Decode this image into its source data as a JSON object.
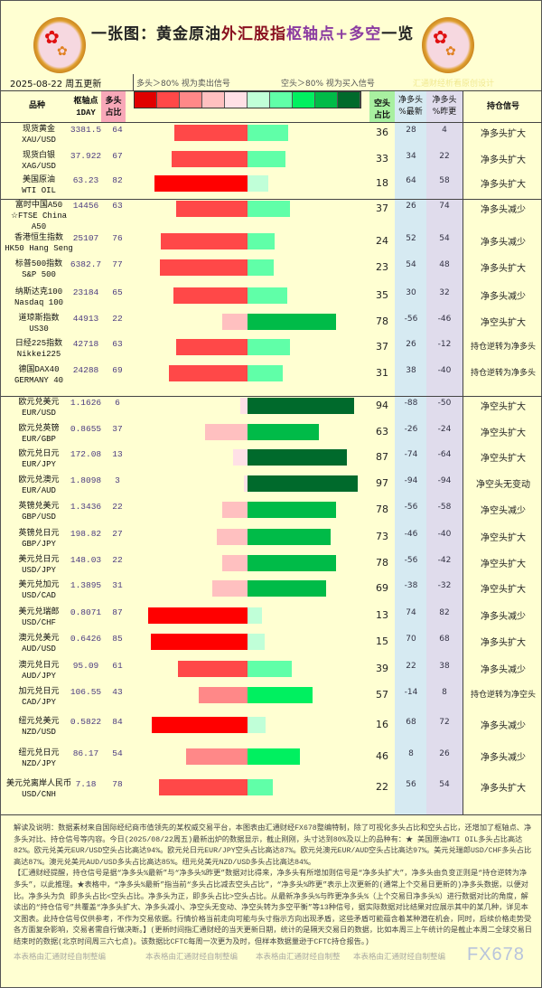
{
  "header": {
    "title_parts": [
      "一张图：黄金原油",
      "外汇股指",
      "枢轴点+多空",
      "一览"
    ],
    "date": "2025-08-22 周五更新",
    "long_signal_note": "多头＞80% 视为卖出信号",
    "short_signal_note": "空头＞80% 视为买入信号",
    "credit": "汇通财经析看原创设计",
    "logo_icon": "plum-blossom-logo"
  },
  "legend_colors": [
    "#e00000",
    "#ff4848",
    "#ff8888",
    "#ffc0c0",
    "#ffe0e6",
    "#c0ffd8",
    "#60ffa8",
    "#00f060",
    "#00bb48",
    "#006a2c"
  ],
  "columns": {
    "name": "品种",
    "pivot": "枢轴点",
    "pivot_sub": "1DAY",
    "long": "多头",
    "long_sub": "占比",
    "short": "空头",
    "short_sub": "占比",
    "net_latest": "净多头",
    "net_latest_sub": "%最新",
    "net_prev": "净多头",
    "net_prev_sub": "%昨更",
    "signal": "持仓信号"
  },
  "rows": [
    {
      "name": "现货黄金",
      "code": "XAU/USD",
      "pivot": "3381.5",
      "long": 64,
      "short": 36,
      "net_latest": "28",
      "net_prev": "4",
      "signal": "净多头扩大"
    },
    {
      "name": "现货白银",
      "code": "XAG/USD",
      "pivot": "37.922",
      "long": 67,
      "short": 33,
      "net_latest": "34",
      "net_prev": "22",
      "signal": "净多头扩大"
    },
    {
      "name": "美国原油",
      "code": "WTI OIL",
      "pivot": "63.23",
      "long": 82,
      "short": 18,
      "net_latest": "64",
      "net_prev": "58",
      "signal": "净多头扩大"
    },
    {
      "name": "富时中国A50",
      "code": "☆FTSE China A50",
      "pivot": "14456",
      "long": 63,
      "short": 37,
      "net_latest": "26",
      "net_prev": "74",
      "signal": "净多头减少"
    },
    {
      "name": "香港恒生指数",
      "code": "HK50 Hang Seng",
      "pivot": "25107",
      "long": 76,
      "short": 24,
      "net_latest": "52",
      "net_prev": "54",
      "signal": "净多头减少"
    },
    {
      "name": "标普500指数",
      "code": "S&P 500",
      "pivot": "6382.7",
      "long": 77,
      "short": 23,
      "net_latest": "54",
      "net_prev": "48",
      "signal": "净多头扩大"
    },
    {
      "name": "纳斯达克100",
      "code": "Nasdaq 100",
      "pivot": "23184",
      "long": 65,
      "short": 35,
      "net_latest": "30",
      "net_prev": "32",
      "signal": "净多头减少"
    },
    {
      "name": "道琼斯指数",
      "code": "US30",
      "pivot": "44913",
      "long": 22,
      "short": 78,
      "net_latest": "-56",
      "net_prev": "-46",
      "signal": "净空头扩大"
    },
    {
      "name": "日经225指数",
      "code": "Nikkei225",
      "pivot": "42718",
      "long": 63,
      "short": 37,
      "net_latest": "26",
      "net_prev": "-12",
      "signal": "持仓逆转为净多头"
    },
    {
      "name": "德国DAX40",
      "code": "GERMANY 40",
      "pivot": "24288",
      "long": 69,
      "short": 31,
      "net_latest": "38",
      "net_prev": "-40",
      "signal": "持仓逆转为净多头"
    },
    {
      "name": "欧元兑美元",
      "code": "EUR/USD",
      "pivot": "1.1626",
      "long": 6,
      "short": 94,
      "net_latest": "-88",
      "net_prev": "-50",
      "signal": "净空头扩大"
    },
    {
      "name": "欧元兑英镑",
      "code": "EUR/GBP",
      "pivot": "0.8655",
      "long": 37,
      "short": 63,
      "net_latest": "-26",
      "net_prev": "-24",
      "signal": "净空头扩大"
    },
    {
      "name": "欧元兑日元",
      "code": "EUR/JPY",
      "pivot": "172.08",
      "long": 13,
      "short": 87,
      "net_latest": "-74",
      "net_prev": "-64",
      "signal": "净空头扩大"
    },
    {
      "name": "欧元兑澳元",
      "code": "EUR/AUD",
      "pivot": "1.8098",
      "long": 3,
      "short": 97,
      "net_latest": "-94",
      "net_prev": "-94",
      "signal": "净空头无变动"
    },
    {
      "name": "英镑兑美元",
      "code": "GBP/USD",
      "pivot": "1.3436",
      "long": 22,
      "short": 78,
      "net_latest": "-56",
      "net_prev": "-58",
      "signal": "净空头减少"
    },
    {
      "name": "英镑兑日元",
      "code": "GBP/JPY",
      "pivot": "198.82",
      "long": 27,
      "short": 73,
      "net_latest": "-46",
      "net_prev": "-40",
      "signal": "净空头扩大"
    },
    {
      "name": "美元兑日元",
      "code": "USD/JPY",
      "pivot": "148.03",
      "long": 22,
      "short": 78,
      "net_latest": "-56",
      "net_prev": "-42",
      "signal": "净空头扩大"
    },
    {
      "name": "美元兑加元",
      "code": "USD/CAD",
      "pivot": "1.3895",
      "long": 31,
      "short": 69,
      "net_latest": "-38",
      "net_prev": "-32",
      "signal": "净空头扩大"
    },
    {
      "name": "美元兑瑞郎",
      "code": "USD/CHF",
      "pivot": "0.8071",
      "long": 87,
      "short": 13,
      "net_latest": "74",
      "net_prev": "82",
      "signal": "净多头减少"
    },
    {
      "name": "澳元兑美元",
      "code": "AUD/USD",
      "pivot": "0.6426",
      "long": 85,
      "short": 15,
      "net_latest": "70",
      "net_prev": "68",
      "signal": "净多头扩大"
    },
    {
      "name": "澳元兑日元",
      "code": "AUD/JPY",
      "pivot": "95.09",
      "long": 61,
      "short": 39,
      "net_latest": "22",
      "net_prev": "38",
      "signal": "净多头减少"
    },
    {
      "name": "加元兑日元",
      "code": "CAD/JPY",
      "pivot": "106.55",
      "long": 43,
      "short": 57,
      "net_latest": "-14",
      "net_prev": "8",
      "signal": "持仓逆转为净空头"
    },
    {
      "name": "纽元兑美元",
      "code": "NZD/USD",
      "pivot": "0.5822",
      "long": 84,
      "short": 16,
      "net_latest": "68",
      "net_prev": "72",
      "signal": "净多头减少"
    },
    {
      "name": "纽元兑日元",
      "code": "NZD/JPY",
      "pivot": "86.17",
      "long": 54,
      "short": 46,
      "net_latest": "8",
      "net_prev": "26",
      "signal": "净多头减少"
    },
    {
      "name": "美元兑离岸人民币",
      "code": "USD/CNH",
      "pivot": "7.18",
      "long": 78,
      "short": 22,
      "net_latest": "56",
      "net_prev": "54",
      "signal": "净多头扩大"
    }
  ],
  "notes": [
    "解读及说明：数据素材来自国际经纪商市值领先的某权威交易平台，本图表由汇通财经FX678整编特制，除了可视化多头占比和空头占比，还增加了枢轴点、净多头对比、持仓信号等内容。今日(2025/08/22周五)最新出炉的数据显示，截止刚刚，头寸达到80%及以上的品种有：★ 美国原油WTI OIL多头占比高达82%。欧元兑美元EUR/USD空头占比高达94%。欧元兑日元EUR/JPY空头占比高达87%。欧元兑澳元EUR/AUD空头占比高达97%。美元兑瑞郎USD/CHF多头占比高达87%。澳元兑美元AUD/USD多头占比高达85%。纽元兑美元NZD/USD多头占比高达84%。",
    "【汇通财经提醒，持仓信号是据“净多头%最新”与“净多头%昨更”数据对比得来，净多头有所增加则信号是“净多头扩大”，净多头由负变正则是“持仓逆转为净多头”，以此推理。★表格中，“净多头%最新”指当前“多头占比减去空头占比”，“净多头%昨更”表示上次更新的(通常上个交易日更新的)净多头数据，以便对比。净多头为负 即多头占比<空头占比。净多头为正，即多头占比>空头占比。从最新净多头%与昨更净多头%（上个交易日净多头%）进行数据对比的角度，解读出的“持仓信号”共覆盖“净多头扩大、净多头减小、净空头无变动、净空头转为多空平衡”等13种信号，据实际数据对比结果对应展示其中的某几种，详见本文图表。此持仓信号仅供参考，不作为交易依据。行情价格当前走向可能与头寸指示方向出现矛盾，这些矛盾可能蕴含着某种潜在机会，同时，后续价格走势受各方面复杂影响，交易者需自行做决断。】(更新时间指汇通财经的当天更新日期，统计的是隔天交易日的数据，比如本周三上午统计的是截止本周二全球交易日结束时的数据(北京时间周三六七点)。该数据比CFTC每周一次更为及时，但样本数据量逊于CFTC持仓报告。)"
  ],
  "watermarks": [
    "本表格由汇通财经自制整编",
    "本表格由汇通财经自制整编",
    "本表格由汇通财经自制整",
    "本表格由汇通财经自制整编"
  ],
  "brand": "FX678"
}
